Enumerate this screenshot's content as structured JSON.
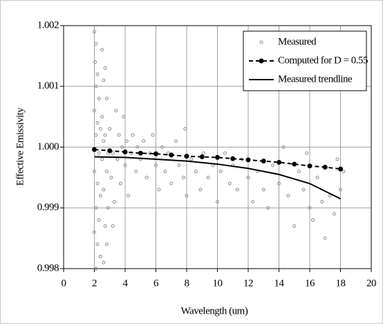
{
  "chart_data": {
    "type": "scatter",
    "xlabel": "Wavelength (um)",
    "ylabel": "Effective Emissivity",
    "xlim": [
      0,
      20
    ],
    "xticks": [
      0,
      2,
      4,
      6,
      8,
      10,
      12,
      14,
      16,
      18,
      20
    ],
    "ylim": [
      0.998,
      1.002
    ],
    "yticks": [
      0.998,
      0.999,
      {
        "value": 1,
        "label": "1.000"
      },
      1.001,
      1.002
    ],
    "grid": true,
    "legend": "top-right",
    "series": [
      {
        "name": "Measured",
        "kind": "markers",
        "color": "#8c8c8c",
        "x": [
          2,
          2.1,
          2.05,
          2.2,
          2.1,
          2.3,
          2.0,
          2.2,
          2.4,
          2.1,
          2.6,
          2.3,
          2.5,
          2.0,
          2.2,
          2.4,
          2.1,
          2.3,
          2.0,
          2.2,
          2.4,
          2.1,
          2.6,
          2.8,
          2.7,
          2.9,
          2.6,
          2.8,
          2.9,
          2.7,
          2.5,
          2.8,
          2.6,
          2.7,
          2.5,
          3.0,
          3.2,
          3.1,
          3.3,
          3.2,
          3.4,
          3.5,
          3.6,
          3.7,
          3.8,
          3.9,
          4.0,
          4.1,
          4.2,
          4.4,
          4.5,
          4.7,
          4.8,
          5.0,
          5.2,
          5.4,
          5.6,
          5.8,
          6.0,
          6.2,
          6.4,
          6.6,
          6.8,
          7.0,
          7.3,
          7.5,
          7.8,
          7.9,
          8.0,
          8.3,
          8.6,
          8.9,
          9.1,
          9.4,
          9.7,
          10.0,
          10.2,
          10.5,
          10.8,
          11.0,
          11.3,
          11.6,
          12.0,
          12.3,
          12.6,
          13.0,
          13.3,
          13.6,
          14.0,
          14.3,
          14.6,
          15.0,
          15.3,
          15.6,
          16.0,
          16.2,
          16.5,
          16.8,
          17.0,
          17.3,
          17.6,
          18.0,
          18.2,
          17.8,
          15.8
        ],
        "values": [
          1.0019,
          1.0017,
          1.0014,
          1.0012,
          1.001,
          1.0008,
          1.0006,
          1.0004,
          1.0003,
          1.0002,
          1.0001,
          0.9999,
          0.9998,
          0.9996,
          0.9994,
          0.9992,
          0.999,
          0.9988,
          0.9986,
          0.9984,
          0.9982,
          0.998,
          0.9981,
          0.9984,
          0.9987,
          0.999,
          0.9993,
          0.9996,
          0.9999,
          1.0002,
          1.0005,
          1.0008,
          1.0011,
          1.0013,
          1.0016,
          1.0003,
          0.9999,
          0.9995,
          0.9991,
          0.9987,
          1.0006,
          0.9998,
          1.0002,
          0.9994,
          1.0,
          1.0005,
          0.9997,
          1.0001,
          0.9992,
          0.9999,
          1.0002,
          0.9996,
          1.0,
          0.9998,
          1.0001,
          0.9995,
          0.9999,
          1.0002,
          0.9997,
          0.9993,
          1.0,
          0.9996,
          0.9999,
          0.9994,
          1.0001,
          0.9997,
          0.9995,
          1.0003,
          0.9992,
          0.9998,
          0.9996,
          0.9993,
          0.9999,
          0.9995,
          0.9997,
          0.9991,
          0.9996,
          0.9999,
          0.9994,
          0.9997,
          0.9993,
          0.9998,
          0.9995,
          0.9991,
          0.9996,
          0.9993,
          0.999,
          0.9997,
          0.9994,
          1.0,
          0.9992,
          0.9987,
          0.9996,
          0.9993,
          0.999,
          0.9988,
          0.9995,
          0.9991,
          0.9985,
          0.9992,
          0.9989,
          0.9993,
          0.9996,
          0.9998,
          0.9999
        ]
      },
      {
        "name": "Computed for D = 0.55",
        "kind": "dashed-markers",
        "color": "#000000",
        "x": [
          2,
          3,
          4,
          5,
          6,
          7,
          8,
          9,
          10,
          11,
          12,
          13,
          14,
          15,
          16,
          17,
          18
        ],
        "values": [
          0.99996,
          0.99994,
          0.99992,
          0.9999,
          0.99989,
          0.99987,
          0.99985,
          0.99984,
          0.99983,
          0.99981,
          0.99979,
          0.99977,
          0.99975,
          0.99972,
          0.99969,
          0.99967,
          0.99964
        ]
      },
      {
        "name": "Measured trendline",
        "kind": "line",
        "color": "#000000",
        "x": [
          2,
          4,
          6,
          8,
          10,
          12,
          14,
          16,
          18
        ],
        "values": [
          0.99984,
          0.99983,
          0.9998,
          0.99977,
          0.99972,
          0.99965,
          0.99955,
          0.9994,
          0.99915
        ]
      }
    ]
  }
}
